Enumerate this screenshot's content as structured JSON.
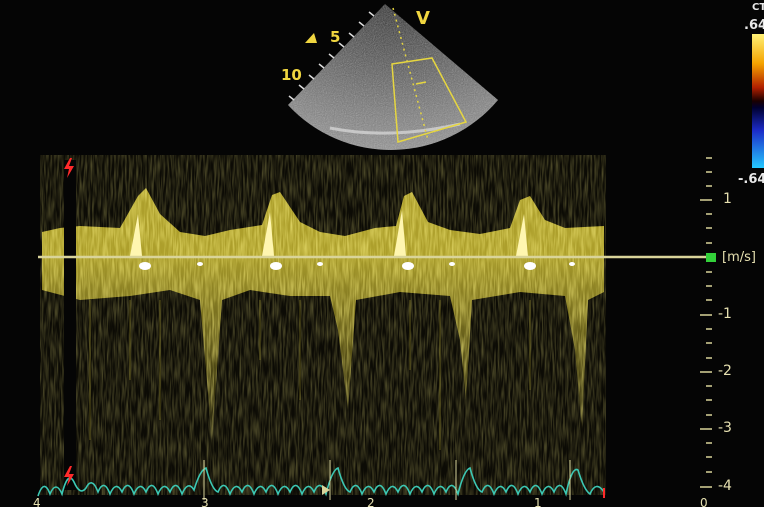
{
  "sector": {
    "depth_labels": [
      "5",
      "10"
    ],
    "beam_label": "V"
  },
  "color_bar": {
    "label": "CT",
    "max_value": ".64",
    "min_value": "-.64",
    "colors": [
      "#fff176",
      "#f5a300",
      "#b01f00",
      "#2a0000",
      "#000030",
      "#1c2cc8",
      "#25c8ff"
    ]
  },
  "velocity_scale": {
    "unit": "[m/s]",
    "ticks": [
      "1",
      "-1",
      "-2",
      "-3",
      "-4"
    ]
  },
  "timeline": {
    "labels": [
      "4",
      "3",
      "2",
      "1",
      "0"
    ]
  },
  "colors": {
    "spectral": "#e3d23a",
    "baseline": "#d9d49a",
    "ecg": "#3cc8b4",
    "marker": "#ff2a2a",
    "zero_indicator": "#33d13a"
  },
  "icons": {
    "ecg_trigger": "lightning-icon",
    "orientation": "triangle-icon"
  }
}
